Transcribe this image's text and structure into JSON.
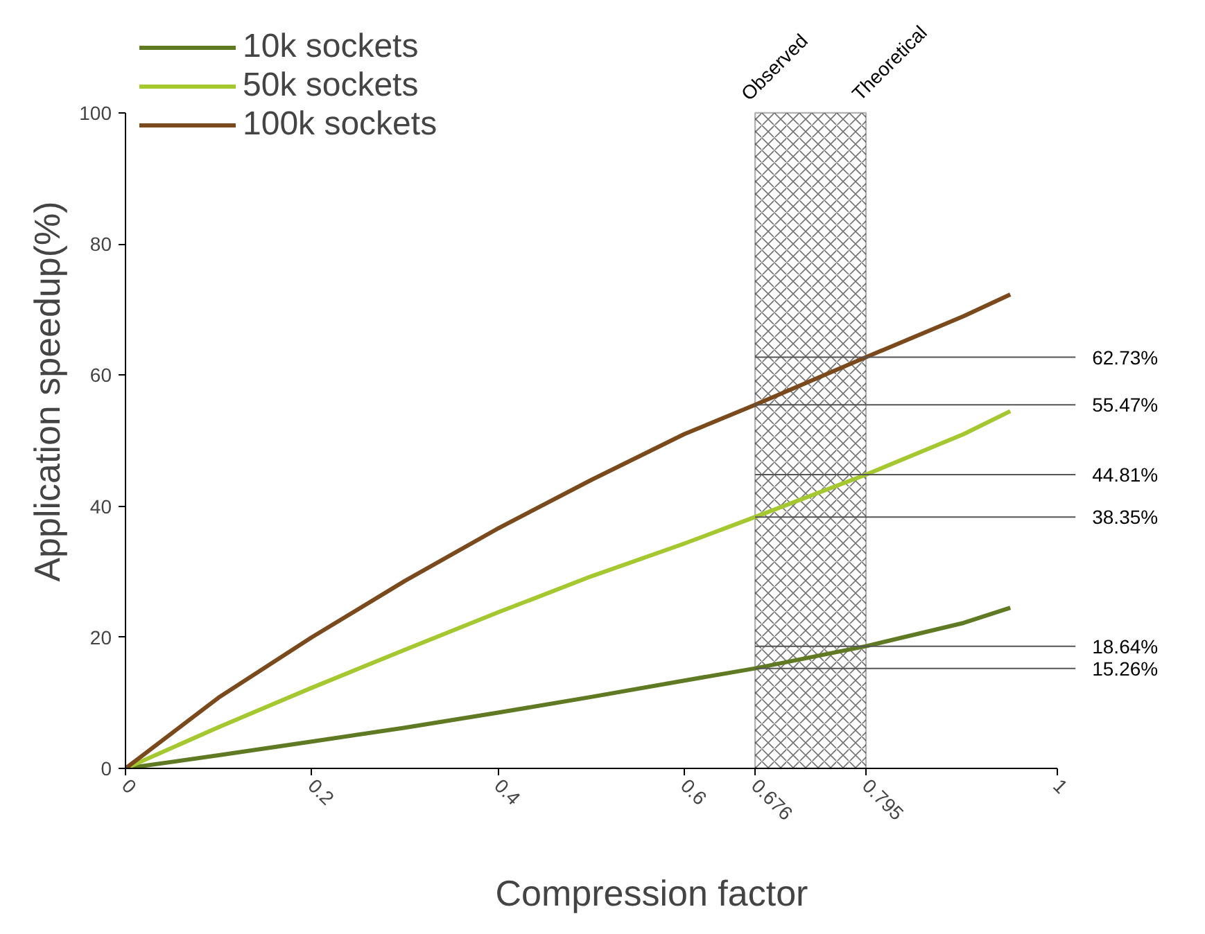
{
  "chart_data": {
    "type": "line",
    "xlabel": "Compression factor",
    "ylabel": "Application speedup(%)",
    "x": [
      0,
      0.1,
      0.2,
      0.3,
      0.4,
      0.5,
      0.6,
      0.676,
      0.795,
      0.9,
      0.95
    ],
    "series": [
      {
        "name": "10k sockets",
        "color": "#5f7a23",
        "values": [
          0,
          2.0,
          4.1,
          6.2,
          8.5,
          10.9,
          13.4,
          15.26,
          18.64,
          22.2,
          24.5
        ]
      },
      {
        "name": "50k sockets",
        "color": "#a5c72f",
        "values": [
          0,
          6.3,
          12.3,
          18.1,
          23.8,
          29.3,
          34.3,
          38.35,
          44.81,
          51,
          54.5
        ]
      },
      {
        "name": "100k sockets",
        "color": "#7a4a1c",
        "values": [
          0,
          10.8,
          20,
          28.6,
          36.6,
          44,
          51,
          55.47,
          62.73,
          69,
          72.3
        ]
      }
    ],
    "xlim": [
      0,
      1
    ],
    "ylim": [
      0,
      100
    ],
    "xticks": [
      0,
      0.2,
      0.4,
      0.6,
      0.676,
      0.795,
      1
    ],
    "yticks": [
      0,
      20,
      40,
      60,
      80,
      100
    ],
    "bands": [
      {
        "axis": "x",
        "from": 0.676,
        "to": 0.795,
        "color": "#000000"
      }
    ],
    "ref_lines": [
      {
        "axis": "y",
        "value": 62.73,
        "label": "62.73%",
        "color": "#555555"
      },
      {
        "axis": "y",
        "value": 55.47,
        "label": "55.47%",
        "color": "#555555"
      },
      {
        "axis": "y",
        "value": 44.81,
        "label": "44.81%",
        "color": "#555555"
      },
      {
        "axis": "y",
        "value": 38.35,
        "label": "38.35%",
        "color": "#555555"
      },
      {
        "axis": "y",
        "value": 18.64,
        "label": "18.64%",
        "color": "#555555"
      },
      {
        "axis": "y",
        "value": 15.26,
        "label": "15.26%",
        "color": "#555555"
      }
    ],
    "annotations": [
      {
        "text": "Observed",
        "x": 0.676,
        "y": 100
      },
      {
        "text": "Theoretical",
        "x": 0.795,
        "y": 100
      }
    ],
    "grid": false,
    "legend": "top left",
    "marker": "none",
    "line_style": "solid"
  }
}
